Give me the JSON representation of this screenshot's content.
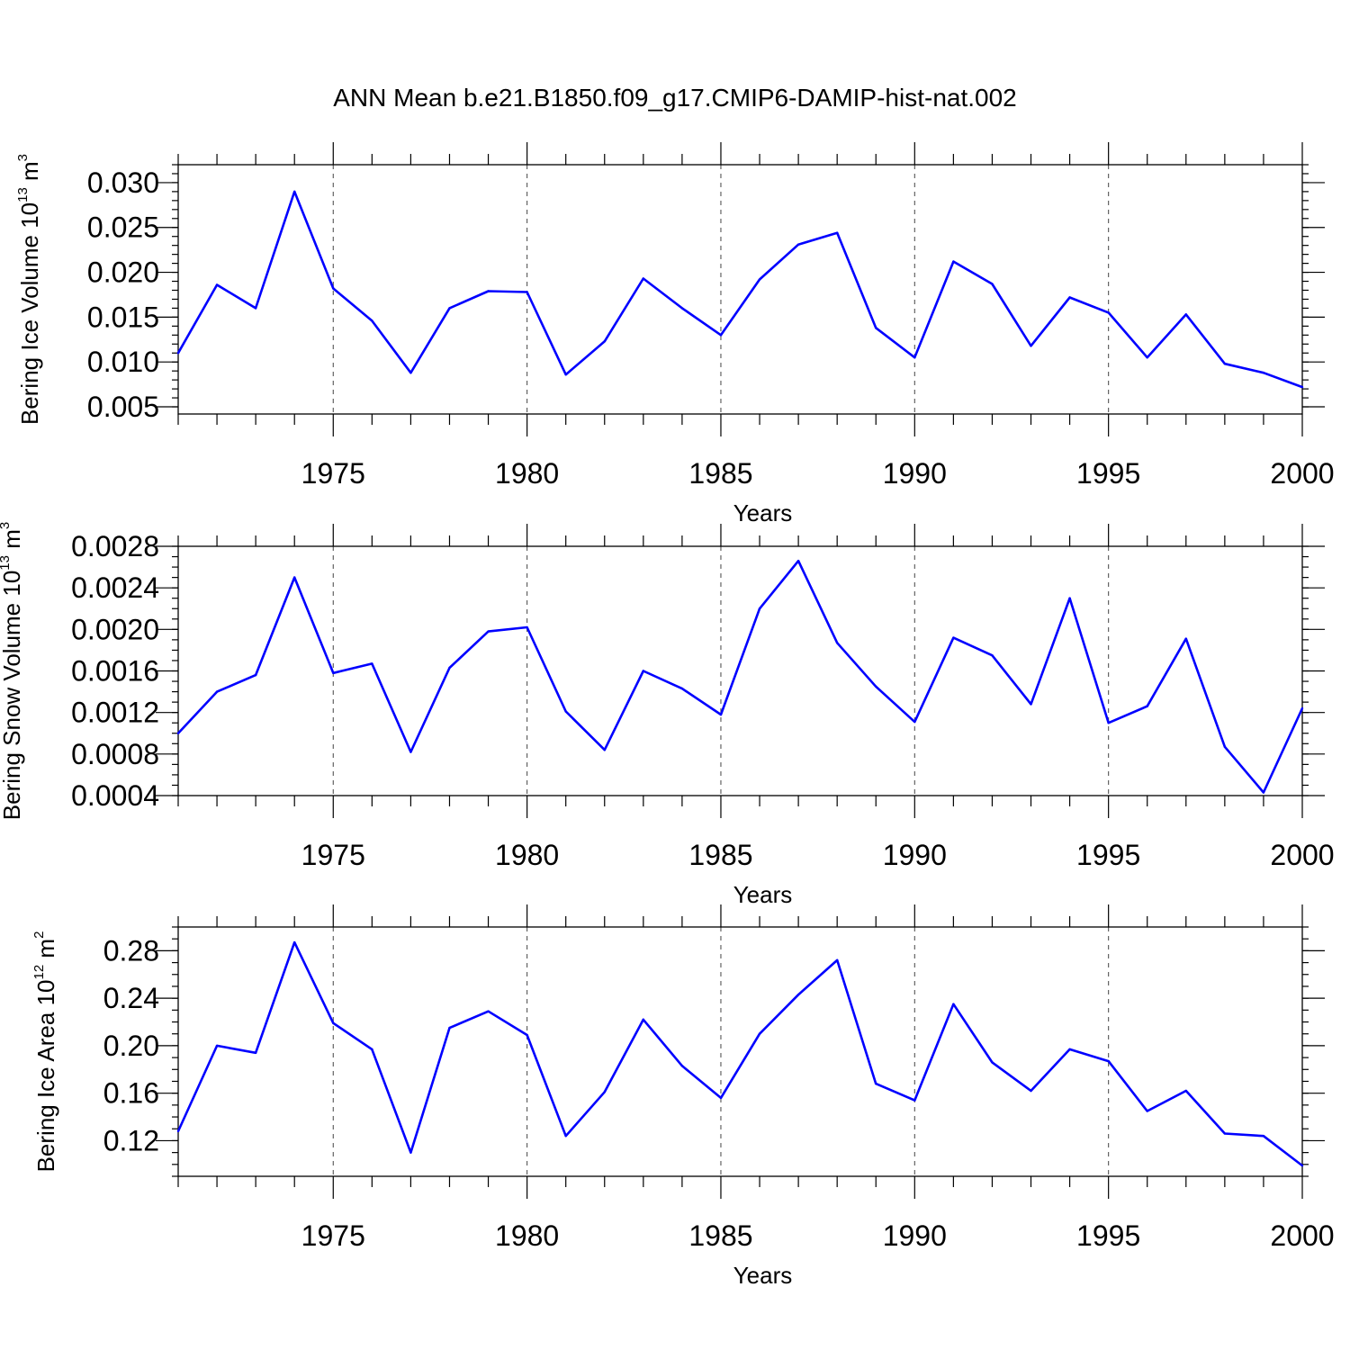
{
  "title": "ANN Mean b.e21.B1850.f09_g17.CMIP6-DAMIP-hist-nat.002",
  "line_color": "#0000ff",
  "chart_data": [
    {
      "type": "line",
      "xlabel": "Years",
      "ylabel": "Bering Ice Volume 10",
      "ylabel_exp": "13",
      "ylabel_unit": " m",
      "ylabel_unit_exp": "3",
      "xlim": [
        1971,
        2000
      ],
      "ylim": [
        0.0042,
        0.032
      ],
      "x_ticks": [
        1975,
        1980,
        1985,
        1990,
        1995,
        2000
      ],
      "y_ticks": [
        0.005,
        0.01,
        0.015,
        0.02,
        0.025,
        0.03
      ],
      "y_tick_labels": [
        "0.005",
        "0.010",
        "0.015",
        "0.020",
        "0.025",
        "0.030"
      ],
      "y_minor_step": 0.001,
      "grid": "vertical dashed at major x ticks",
      "x": [
        1971,
        1972,
        1973,
        1974,
        1975,
        1976,
        1977,
        1978,
        1979,
        1980,
        1981,
        1982,
        1983,
        1984,
        1985,
        1986,
        1987,
        1988,
        1989,
        1990,
        1991,
        1992,
        1993,
        1994,
        1995,
        1996,
        1997,
        1998,
        1999,
        2000
      ],
      "values": [
        0.011,
        0.0186,
        0.016,
        0.029,
        0.0182,
        0.0146,
        0.0088,
        0.016,
        0.0179,
        0.0178,
        0.0086,
        0.0123,
        0.0193,
        0.016,
        0.013,
        0.0192,
        0.0231,
        0.0244,
        0.0138,
        0.0105,
        0.0212,
        0.0187,
        0.0118,
        0.0172,
        0.0155,
        0.0105,
        0.0153,
        0.0098,
        0.0088,
        0.0072
      ]
    },
    {
      "type": "line",
      "xlabel": "Years",
      "ylabel": "Bering Snow Volume 10",
      "ylabel_exp": "13",
      "ylabel_unit": " m",
      "ylabel_unit_exp": "3",
      "xlim": [
        1971,
        2000
      ],
      "ylim": [
        0.0004,
        0.0028
      ],
      "x_ticks": [
        1975,
        1980,
        1985,
        1990,
        1995,
        2000
      ],
      "y_ticks": [
        0.0004,
        0.0008,
        0.0012,
        0.0016,
        0.002,
        0.0024,
        0.0028
      ],
      "y_tick_labels": [
        "0.0004",
        "0.0008",
        "0.0012",
        "0.0016",
        "0.0020",
        "0.0024",
        "0.0028"
      ],
      "y_minor_step": 0.0001,
      "grid": "vertical dashed at major x ticks",
      "x": [
        1971,
        1972,
        1973,
        1974,
        1975,
        1976,
        1977,
        1978,
        1979,
        1980,
        1981,
        1982,
        1983,
        1984,
        1985,
        1986,
        1987,
        1988,
        1989,
        1990,
        1991,
        1992,
        1993,
        1994,
        1995,
        1996,
        1997,
        1998,
        1999,
        2000
      ],
      "values": [
        0.001,
        0.0014,
        0.00156,
        0.0025,
        0.00158,
        0.00167,
        0.00082,
        0.00163,
        0.00198,
        0.00202,
        0.00121,
        0.00084,
        0.0016,
        0.00143,
        0.00118,
        0.0022,
        0.00266,
        0.00187,
        0.00145,
        0.00111,
        0.00192,
        0.00175,
        0.00128,
        0.0023,
        0.0011,
        0.00126,
        0.00191,
        0.00087,
        0.00043,
        0.00124
      ]
    },
    {
      "type": "line",
      "xlabel": "Years",
      "ylabel": "Bering Ice Area 10",
      "ylabel_exp": "12",
      "ylabel_unit": " m",
      "ylabel_unit_exp": "2",
      "xlim": [
        1971,
        2000
      ],
      "ylim": [
        0.09,
        0.3
      ],
      "x_ticks": [
        1975,
        1980,
        1985,
        1990,
        1995,
        2000
      ],
      "y_ticks": [
        0.12,
        0.16,
        0.2,
        0.24,
        0.28
      ],
      "y_tick_labels": [
        "0.12",
        "0.16",
        "0.20",
        "0.24",
        "0.28"
      ],
      "y_minor_step": 0.01,
      "grid": "vertical dashed at major x ticks",
      "x": [
        1971,
        1972,
        1973,
        1974,
        1975,
        1976,
        1977,
        1978,
        1979,
        1980,
        1981,
        1982,
        1983,
        1984,
        1985,
        1986,
        1987,
        1988,
        1989,
        1990,
        1991,
        1992,
        1993,
        1994,
        1995,
        1996,
        1997,
        1998,
        1999,
        2000
      ],
      "values": [
        0.128,
        0.2,
        0.194,
        0.287,
        0.219,
        0.197,
        0.11,
        0.215,
        0.229,
        0.209,
        0.124,
        0.161,
        0.222,
        0.183,
        0.156,
        0.21,
        0.243,
        0.272,
        0.168,
        0.154,
        0.235,
        0.186,
        0.162,
        0.197,
        0.187,
        0.145,
        0.162,
        0.126,
        0.124,
        0.099
      ]
    }
  ]
}
